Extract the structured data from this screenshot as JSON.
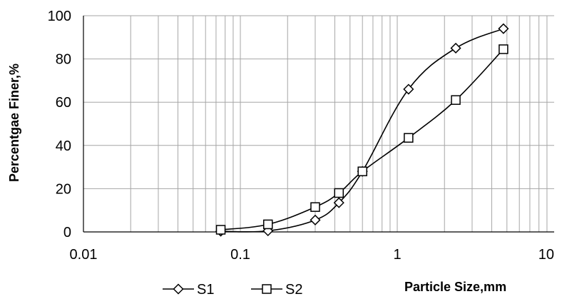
{
  "chart_data": {
    "type": "scatter",
    "xscale": "log",
    "xlim": [
      0.01,
      10
    ],
    "ylim": [
      0,
      100
    ],
    "xticks": [
      "0.01",
      "0.1",
      "1",
      "10"
    ],
    "yticks": [
      "0",
      "20",
      "40",
      "60",
      "80",
      "100"
    ],
    "xlabel": "Particle Size,mm",
    "ylabel": "Percentgae Finer,%",
    "grid": true,
    "legend_position": "bottom",
    "series": [
      {
        "name": "S1",
        "marker": "diamond",
        "x": [
          0.075,
          0.15,
          0.3,
          0.425,
          0.6,
          1.18,
          2.36,
          4.75
        ],
        "y": [
          0.3,
          0.5,
          5.5,
          13.5,
          28,
          66,
          85,
          94
        ]
      },
      {
        "name": "S2",
        "marker": "square",
        "x": [
          0.075,
          0.15,
          0.3,
          0.425,
          0.6,
          1.18,
          2.36,
          4.75
        ],
        "y": [
          1,
          3.5,
          11.5,
          18,
          28,
          43.5,
          61,
          84.5
        ]
      }
    ],
    "colors": {
      "line": "#000000",
      "grid": "#a6a6a6",
      "marker_fill": "#ffffff"
    }
  }
}
